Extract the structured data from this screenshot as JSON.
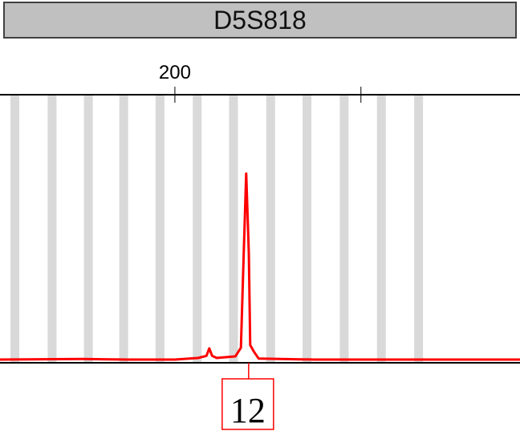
{
  "chart_data": {
    "type": "line",
    "title": "D5S818",
    "xlabel": "",
    "ylabel": "",
    "xlim": [
      181.2,
      237.1
    ],
    "ylim": [
      0,
      1
    ],
    "x_ticks": [
      200,
      220
    ],
    "x_tick_labels": [
      "200",
      ""
    ],
    "grid": false,
    "bins": [
      182.8,
      186.8,
      190.7,
      194.5,
      198.4,
      202.4,
      206.3,
      210.3,
      214.2,
      218.2,
      222.2,
      226.2
    ],
    "series": [
      {
        "color": "#ff0000",
        "x": [
          181.2,
          190,
          195,
          200,
          202.5,
          203.4,
          203.7,
          204.0,
          204.5,
          206.5,
          207.1,
          207.4,
          207.67,
          207.95,
          208.1,
          208.5,
          209,
          215,
          237.1
        ],
        "y": [
          0.006,
          0.008,
          0.006,
          0.006,
          0.012,
          0.02,
          0.048,
          0.02,
          0.012,
          0.018,
          0.05,
          0.4,
          0.7,
          0.4,
          0.06,
          0.035,
          0.01,
          0.006,
          0.006
        ]
      }
    ],
    "alleles": [
      {
        "label": "12",
        "x": 207.67
      }
    ]
  },
  "colors": {
    "trace": "#ff0000",
    "bin": "#d9d9d9",
    "header": "#c0c0c0"
  }
}
